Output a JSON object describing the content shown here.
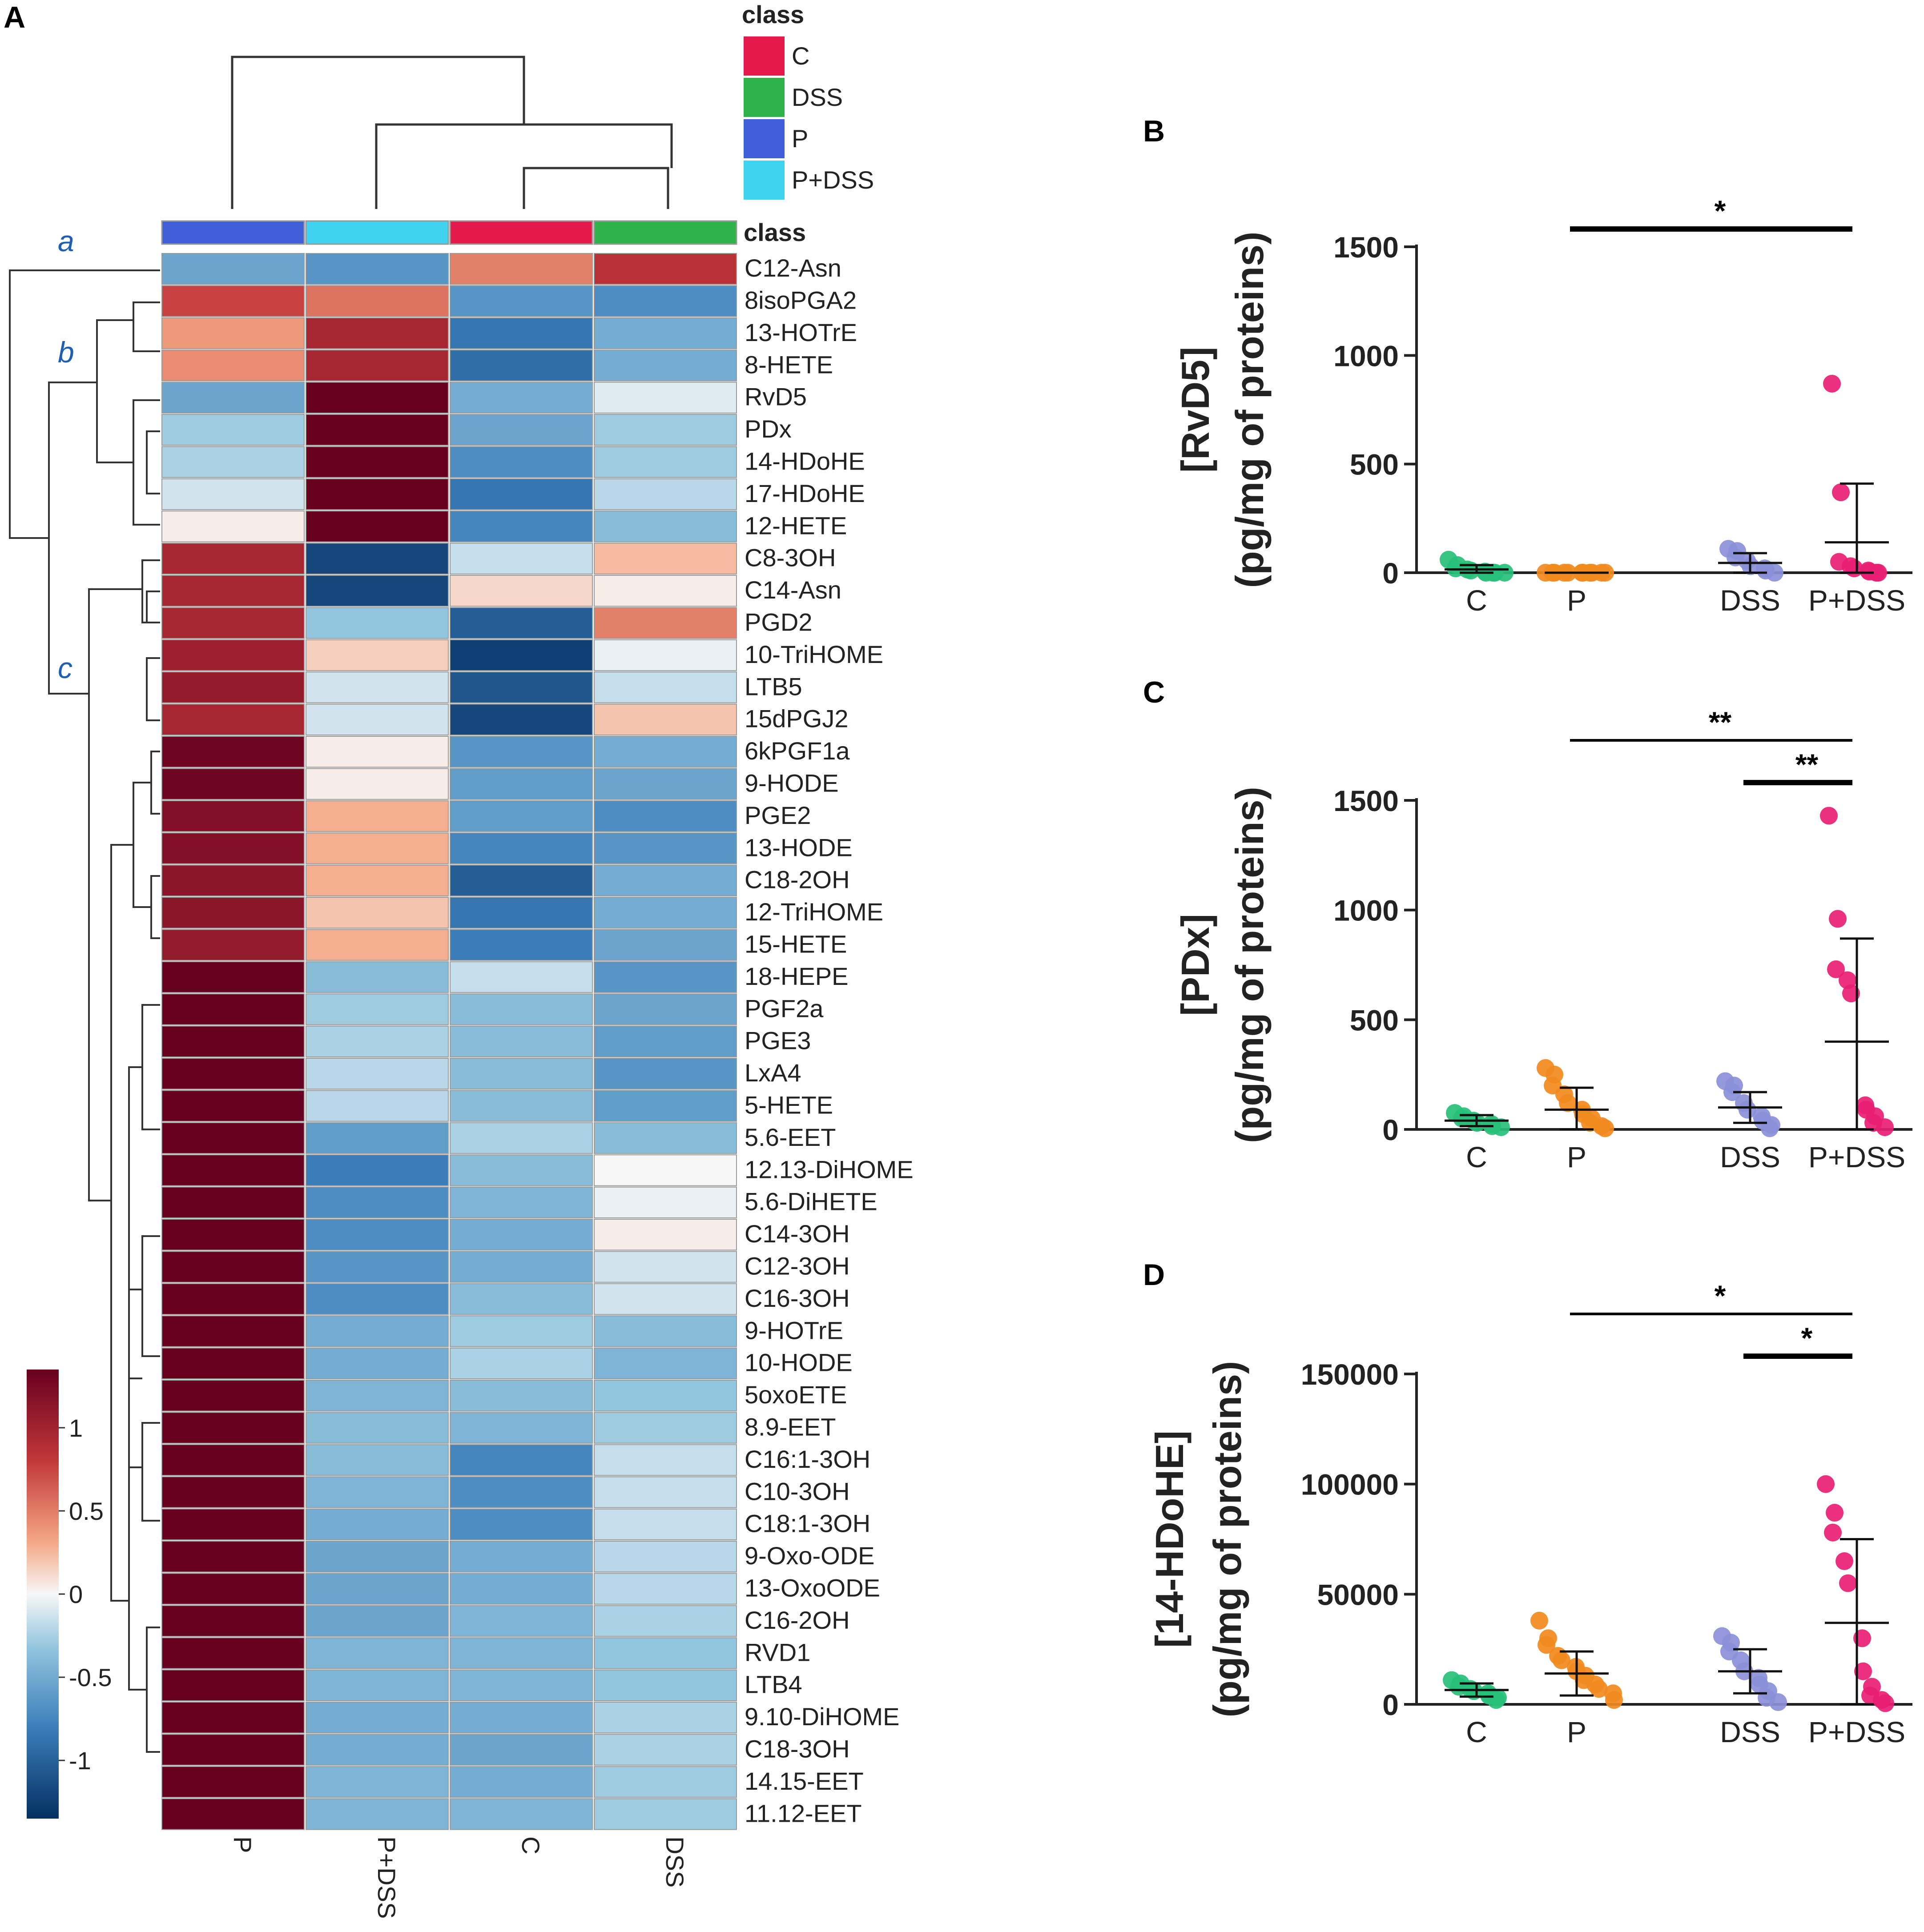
{
  "panels": {
    "A": "A",
    "B": "B",
    "C": "C",
    "D": "D"
  },
  "colors": {
    "C": "#e31a4b",
    "DSS": "#2fb24a",
    "P": "#3f5fd8",
    "P+DSS": "#3fd3f0",
    "C_dot": "#27c07a",
    "P_dot": "#f28a1e",
    "DSS_dot": "#8a90d8",
    "P+DSS_dot": "#e81e73",
    "heat_high": "#67001f",
    "heat_mid": "#f7f7f7",
    "heat_low": "#053061"
  },
  "chart_data": [
    {
      "id": "A",
      "type": "heatmap",
      "legend_title": "class",
      "legend_items": [
        "C",
        "DSS",
        "P",
        "P+DSS"
      ],
      "class_row_label": "class",
      "columns": [
        "P",
        "P+DSS",
        "C",
        "DSS"
      ],
      "column_classes": [
        "P",
        "P+DSS",
        "C",
        "DSS"
      ],
      "cluster_labels": [
        "a",
        "b",
        "c"
      ],
      "colorbar": {
        "range": [
          -1.35,
          1.35
        ],
        "ticks": [
          1,
          0.5,
          0,
          -0.5,
          -1
        ],
        "tick_labels": [
          "1",
          "0.5",
          "0",
          "-0.5",
          "-1"
        ]
      },
      "rows": [
        {
          "name": "C12-Asn",
          "values": [
            -0.6,
            -0.7,
            0.55,
            0.9
          ]
        },
        {
          "name": "8isoPGA2",
          "values": [
            0.8,
            0.6,
            -0.7,
            -0.75
          ]
        },
        {
          "name": "13-HOTrE",
          "values": [
            0.45,
            1.0,
            -0.9,
            -0.55
          ]
        },
        {
          "name": "8-HETE",
          "values": [
            0.5,
            1.0,
            -0.95,
            -0.55
          ]
        },
        {
          "name": "RvD5",
          "values": [
            -0.6,
            1.35,
            -0.55,
            -0.1
          ]
        },
        {
          "name": "PDx",
          "values": [
            -0.35,
            1.35,
            -0.6,
            -0.35
          ]
        },
        {
          "name": "14-HDoHE",
          "values": [
            -0.3,
            1.35,
            -0.75,
            -0.35
          ]
        },
        {
          "name": "17-HDoHE",
          "values": [
            -0.15,
            1.35,
            -0.9,
            -0.25
          ]
        },
        {
          "name": "12-HETE",
          "values": [
            0.05,
            1.35,
            -0.8,
            -0.45
          ]
        },
        {
          "name": "C8-3OH",
          "values": [
            1.0,
            -1.2,
            -0.2,
            0.3
          ]
        },
        {
          "name": "C14-Asn",
          "values": [
            1.0,
            -1.2,
            0.15,
            0.05
          ]
        },
        {
          "name": "PGD2",
          "values": [
            1.0,
            -0.4,
            -1.05,
            0.55
          ]
        },
        {
          "name": "10-TriHOME",
          "values": [
            1.05,
            0.2,
            -1.25,
            -0.05
          ]
        },
        {
          "name": "LTB5",
          "values": [
            1.1,
            -0.15,
            -1.1,
            -0.2
          ]
        },
        {
          "name": "15dPGJ2",
          "values": [
            1.0,
            -0.15,
            -1.2,
            0.25
          ]
        },
        {
          "name": "6kPGF1a",
          "values": [
            1.3,
            0.05,
            -0.7,
            -0.55
          ]
        },
        {
          "name": "9-HODE",
          "values": [
            1.3,
            0.05,
            -0.65,
            -0.6
          ]
        },
        {
          "name": "PGE2",
          "values": [
            1.2,
            0.35,
            -0.65,
            -0.75
          ]
        },
        {
          "name": "13-HODE",
          "values": [
            1.2,
            0.35,
            -0.8,
            -0.7
          ]
        },
        {
          "name": "C18-2OH",
          "values": [
            1.15,
            0.35,
            -1.05,
            -0.55
          ]
        },
        {
          "name": "12-TriHOME",
          "values": [
            1.15,
            0.25,
            -0.9,
            -0.55
          ]
        },
        {
          "name": "15-HETE",
          "values": [
            1.1,
            0.35,
            -0.85,
            -0.6
          ]
        },
        {
          "name": "18-HEPE",
          "values": [
            1.35,
            -0.45,
            -0.2,
            -0.7
          ]
        },
        {
          "name": "PGF2a",
          "values": [
            1.35,
            -0.35,
            -0.45,
            -0.6
          ]
        },
        {
          "name": "PGE3",
          "values": [
            1.35,
            -0.3,
            -0.45,
            -0.65
          ]
        },
        {
          "name": "LxA4",
          "values": [
            1.35,
            -0.25,
            -0.45,
            -0.7
          ]
        },
        {
          "name": "5-HETE",
          "values": [
            1.35,
            -0.25,
            -0.45,
            -0.65
          ]
        },
        {
          "name": "5.6-EET",
          "values": [
            1.35,
            -0.65,
            -0.3,
            -0.45
          ]
        },
        {
          "name": "12.13-DiHOME",
          "values": [
            1.35,
            -0.85,
            -0.45,
            0.0
          ]
        },
        {
          "name": "5.6-DiHETE",
          "values": [
            1.35,
            -0.75,
            -0.5,
            -0.05
          ]
        },
        {
          "name": "C14-3OH",
          "values": [
            1.35,
            -0.75,
            -0.55,
            0.05
          ]
        },
        {
          "name": "C12-3OH",
          "values": [
            1.35,
            -0.7,
            -0.55,
            -0.15
          ]
        },
        {
          "name": "C16-3OH",
          "values": [
            1.35,
            -0.75,
            -0.45,
            -0.15
          ]
        },
        {
          "name": "9-HOTrE",
          "values": [
            1.35,
            -0.55,
            -0.35,
            -0.45
          ]
        },
        {
          "name": "10-HODE",
          "values": [
            1.35,
            -0.55,
            -0.3,
            -0.5
          ]
        },
        {
          "name": "5oxoETE",
          "values": [
            1.35,
            -0.5,
            -0.45,
            -0.4
          ]
        },
        {
          "name": "8.9-EET",
          "values": [
            1.35,
            -0.45,
            -0.5,
            -0.35
          ]
        },
        {
          "name": "C16:1-3OH",
          "values": [
            1.35,
            -0.45,
            -0.8,
            -0.2
          ]
        },
        {
          "name": "C10-3OH",
          "values": [
            1.35,
            -0.5,
            -0.75,
            -0.2
          ]
        },
        {
          "name": "C18:1-3OH",
          "values": [
            1.35,
            -0.55,
            -0.75,
            -0.2
          ]
        },
        {
          "name": "9-Oxo-ODE",
          "values": [
            1.35,
            -0.6,
            -0.55,
            -0.25
          ]
        },
        {
          "name": "13-OxoODE",
          "values": [
            1.35,
            -0.6,
            -0.55,
            -0.25
          ]
        },
        {
          "name": "C16-2OH",
          "values": [
            1.35,
            -0.6,
            -0.5,
            -0.3
          ]
        },
        {
          "name": "RVD1",
          "values": [
            1.35,
            -0.5,
            -0.5,
            -0.4
          ]
        },
        {
          "name": "LTB4",
          "values": [
            1.35,
            -0.5,
            -0.5,
            -0.4
          ]
        },
        {
          "name": "9.10-DiHOME",
          "values": [
            1.35,
            -0.55,
            -0.55,
            -0.3
          ]
        },
        {
          "name": "C18-3OH",
          "values": [
            1.35,
            -0.55,
            -0.6,
            -0.3
          ]
        },
        {
          "name": "14.15-EET",
          "values": [
            1.35,
            -0.5,
            -0.55,
            -0.35
          ]
        },
        {
          "name": "11.12-EET",
          "values": [
            1.35,
            -0.5,
            -0.5,
            -0.35
          ]
        }
      ]
    },
    {
      "id": "B",
      "type": "scatter",
      "ylabel_line1": "[RvD5]",
      "ylabel_line2": "(pg/mg of proteins)",
      "categories": [
        "C",
        "P",
        "DSS",
        "P+DSS"
      ],
      "ylim": [
        0,
        1500
      ],
      "yticks": [
        0,
        500,
        1000,
        1500
      ],
      "ytick_labels": [
        "0",
        "500",
        "1000",
        "1500"
      ],
      "groups": [
        {
          "name": "C",
          "points": [
            60,
            35,
            20,
            15,
            10,
            5,
            0,
            0,
            0,
            0
          ],
          "mean": 15,
          "err_low": 0,
          "err_high": 35
        },
        {
          "name": "P",
          "points": [
            0,
            0,
            0,
            0,
            0,
            0,
            0,
            0,
            0,
            0,
            0
          ],
          "mean": 0,
          "err_low": 0,
          "err_high": 0
        },
        {
          "name": "DSS",
          "points": [
            110,
            100,
            70,
            55,
            30,
            20,
            10,
            0
          ],
          "mean": 45,
          "err_low": 0,
          "err_high": 90
        },
        {
          "name": "P+DSS",
          "points": [
            870,
            370,
            50,
            30,
            20,
            10,
            5,
            0,
            0
          ],
          "mean": 140,
          "err_low": 0,
          "err_high": 410
        }
      ],
      "significance": [
        {
          "from": "P",
          "to": "P+DSS",
          "label": "*",
          "level": 1
        }
      ]
    },
    {
      "id": "C",
      "type": "scatter",
      "ylabel_line1": "[PDx]",
      "ylabel_line2": "(pg/mg of proteins)",
      "categories": [
        "C",
        "P",
        "DSS",
        "P+DSS"
      ],
      "ylim": [
        0,
        1500
      ],
      "yticks": [
        0,
        500,
        1000,
        1500
      ],
      "ytick_labels": [
        "0",
        "500",
        "1000",
        "1500"
      ],
      "groups": [
        {
          "name": "C",
          "points": [
            75,
            60,
            50,
            40,
            30,
            25,
            15,
            10
          ],
          "mean": 40,
          "err_low": 15,
          "err_high": 65
        },
        {
          "name": "P",
          "points": [
            280,
            250,
            200,
            160,
            120,
            90,
            70,
            50,
            30,
            15,
            5
          ],
          "mean": 90,
          "err_low": 0,
          "err_high": 190
        },
        {
          "name": "DSS",
          "points": [
            220,
            200,
            170,
            120,
            90,
            60,
            40,
            20,
            5
          ],
          "mean": 100,
          "err_low": 30,
          "err_high": 170
        },
        {
          "name": "P+DSS",
          "points": [
            1430,
            960,
            730,
            680,
            620,
            110,
            90,
            60,
            30,
            10
          ],
          "mean": 400,
          "err_low": 0,
          "err_high": 870
        }
      ],
      "significance": [
        {
          "from": "P",
          "to": "P+DSS",
          "label": "**",
          "level": 2
        },
        {
          "from": "DSS",
          "to": "P+DSS",
          "label": "**",
          "level": 1
        }
      ]
    },
    {
      "id": "D",
      "type": "scatter",
      "ylabel_line1": "[14-HDoHE]",
      "ylabel_line2": "(pg/mg of proteins)",
      "categories": [
        "C",
        "P",
        "DSS",
        "P+DSS"
      ],
      "ylim": [
        0,
        150000
      ],
      "yticks": [
        0,
        50000,
        100000,
        150000
      ],
      "ytick_labels": [
        "0",
        "50000",
        "100000",
        "150000"
      ],
      "groups": [
        {
          "name": "C",
          "points": [
            11000,
            9500,
            8000,
            7000,
            6000,
            5000,
            4000,
            3000,
            2000
          ],
          "mean": 6500,
          "err_low": 3500,
          "err_high": 9500
        },
        {
          "name": "P",
          "points": [
            38000,
            30000,
            27000,
            22000,
            20000,
            17000,
            15000,
            13000,
            11000,
            9000,
            7000,
            5000,
            2000
          ],
          "mean": 14000,
          "err_low": 4000,
          "err_high": 24000
        },
        {
          "name": "DSS",
          "points": [
            31000,
            28000,
            24000,
            20000,
            15000,
            12000,
            9000,
            6000,
            3000,
            1000
          ],
          "mean": 15000,
          "err_low": 5000,
          "err_high": 25000
        },
        {
          "name": "P+DSS",
          "points": [
            100000,
            87000,
            78000,
            65000,
            55000,
            30000,
            15000,
            8000,
            4000,
            2000,
            500
          ],
          "mean": 37000,
          "err_low": 0,
          "err_high": 75000
        }
      ],
      "significance": [
        {
          "from": "P",
          "to": "P+DSS",
          "label": "*",
          "level": 2
        },
        {
          "from": "DSS",
          "to": "P+DSS",
          "label": "*",
          "level": 1
        }
      ]
    }
  ]
}
